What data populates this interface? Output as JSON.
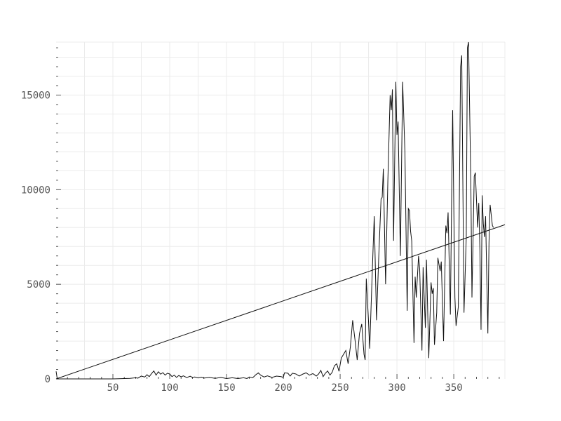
{
  "chart_data": {
    "type": "line",
    "title": "",
    "xlabel": "",
    "ylabel": "",
    "xlim": [
      0,
      395
    ],
    "ylim": [
      0,
      17800
    ],
    "x_ticks": [
      50,
      100,
      150,
      200,
      250,
      300,
      350
    ],
    "y_ticks": [
      0,
      5000,
      10000,
      15000
    ],
    "x_tick_labels": [
      "50",
      "100",
      "150",
      "200",
      "250",
      "300",
      "350"
    ],
    "y_tick_labels": [
      "0",
      "5000",
      "10000",
      "15000"
    ],
    "grid": true,
    "legend": "none",
    "colors": {
      "series": "#111111",
      "grid": "#ebebeb",
      "tick_text": "#555555",
      "background": "#ffffff"
    },
    "series": [
      {
        "points": [
          [
            0,
            400
          ],
          [
            1,
            0
          ],
          [
            10,
            0
          ],
          [
            20,
            0
          ],
          [
            30,
            0
          ],
          [
            40,
            0
          ],
          [
            50,
            0
          ],
          [
            55,
            10
          ],
          [
            60,
            20
          ],
          [
            65,
            30
          ],
          [
            70,
            60
          ],
          [
            72,
            40
          ],
          [
            75,
            150
          ],
          [
            78,
            100
          ],
          [
            80,
            220
          ],
          [
            82,
            120
          ],
          [
            84,
            280
          ],
          [
            86,
            420
          ],
          [
            88,
            200
          ],
          [
            90,
            380
          ],
          [
            92,
            250
          ],
          [
            94,
            330
          ],
          [
            96,
            200
          ],
          [
            98,
            300
          ],
          [
            100,
            260
          ],
          [
            102,
            120
          ],
          [
            104,
            200
          ],
          [
            106,
            80
          ],
          [
            108,
            180
          ],
          [
            110,
            110
          ],
          [
            112,
            160
          ],
          [
            115,
            70
          ],
          [
            118,
            140
          ],
          [
            120,
            80
          ],
          [
            122,
            100
          ],
          [
            125,
            50
          ],
          [
            128,
            90
          ],
          [
            130,
            40
          ],
          [
            135,
            80
          ],
          [
            140,
            30
          ],
          [
            145,
            80
          ],
          [
            150,
            20
          ],
          [
            155,
            60
          ],
          [
            160,
            20
          ],
          [
            165,
            60
          ],
          [
            168,
            20
          ],
          [
            170,
            100
          ],
          [
            173,
            60
          ],
          [
            176,
            230
          ],
          [
            178,
            320
          ],
          [
            180,
            200
          ],
          [
            183,
            100
          ],
          [
            186,
            160
          ],
          [
            190,
            80
          ],
          [
            194,
            150
          ],
          [
            198,
            120
          ],
          [
            200,
            80
          ],
          [
            201,
            320
          ],
          [
            204,
            300
          ],
          [
            206,
            150
          ],
          [
            208,
            300
          ],
          [
            211,
            260
          ],
          [
            214,
            150
          ],
          [
            217,
            250
          ],
          [
            220,
            320
          ],
          [
            223,
            200
          ],
          [
            226,
            280
          ],
          [
            229,
            150
          ],
          [
            231,
            260
          ],
          [
            233,
            450
          ],
          [
            235,
            120
          ],
          [
            237,
            300
          ],
          [
            239,
            420
          ],
          [
            241,
            200
          ],
          [
            243,
            350
          ],
          [
            245,
            700
          ],
          [
            247,
            800
          ],
          [
            249,
            400
          ],
          [
            251,
            1100
          ],
          [
            253,
            1300
          ],
          [
            255,
            1500
          ],
          [
            257,
            800
          ],
          [
            259,
            1700
          ],
          [
            261,
            3100
          ],
          [
            263,
            2100
          ],
          [
            265,
            1000
          ],
          [
            267,
            2400
          ],
          [
            269,
            2900
          ],
          [
            271,
            1300
          ],
          [
            272,
            1000
          ],
          [
            273,
            5300
          ],
          [
            275,
            3000
          ],
          [
            276,
            1600
          ],
          [
            278,
            5200
          ],
          [
            280,
            8600
          ],
          [
            282,
            3100
          ],
          [
            284,
            6500
          ],
          [
            286,
            9500
          ],
          [
            287,
            9600
          ],
          [
            288,
            11100
          ],
          [
            290,
            5000
          ],
          [
            292,
            10500
          ],
          [
            294,
            15000
          ],
          [
            295,
            14200
          ],
          [
            296,
            15300
          ],
          [
            297,
            7300
          ],
          [
            299,
            15700
          ],
          [
            300,
            12900
          ],
          [
            301,
            13600
          ],
          [
            303,
            6500
          ],
          [
            305,
            15700
          ],
          [
            307,
            12000
          ],
          [
            309,
            3600
          ],
          [
            310,
            9000
          ],
          [
            311,
            8900
          ],
          [
            312,
            7800
          ],
          [
            313,
            7300
          ],
          [
            315,
            1900
          ],
          [
            316,
            5400
          ],
          [
            317,
            4300
          ],
          [
            319,
            6500
          ],
          [
            320,
            5800
          ],
          [
            322,
            1500
          ],
          [
            323,
            5900
          ],
          [
            325,
            2700
          ],
          [
            326,
            6300
          ],
          [
            328,
            1100
          ],
          [
            330,
            5100
          ],
          [
            331,
            4500
          ],
          [
            332,
            4800
          ],
          [
            333,
            1800
          ],
          [
            335,
            3500
          ],
          [
            336,
            6400
          ],
          [
            338,
            5700
          ],
          [
            339,
            6200
          ],
          [
            341,
            2000
          ],
          [
            343,
            8100
          ],
          [
            344,
            7700
          ],
          [
            345,
            8800
          ],
          [
            347,
            3400
          ],
          [
            349,
            14200
          ],
          [
            351,
            4300
          ],
          [
            352,
            2800
          ],
          [
            354,
            3800
          ],
          [
            356,
            16500
          ],
          [
            357,
            17100
          ],
          [
            359,
            3500
          ],
          [
            361,
            7500
          ],
          [
            362,
            17500
          ],
          [
            363,
            17800
          ],
          [
            365,
            10500
          ],
          [
            366,
            4300
          ],
          [
            368,
            10700
          ],
          [
            369,
            10900
          ],
          [
            371,
            8000
          ],
          [
            372,
            9300
          ],
          [
            373,
            6800
          ],
          [
            374,
            2600
          ],
          [
            375,
            9700
          ],
          [
            376,
            8200
          ],
          [
            377,
            7500
          ],
          [
            378,
            8600
          ],
          [
            380,
            2400
          ],
          [
            381,
            7200
          ],
          [
            382,
            9200
          ],
          [
            384,
            8100
          ],
          [
            385,
            8000
          ]
        ]
      },
      {
        "points": [
          [
            0,
            0
          ],
          [
            395,
            8150
          ]
        ]
      }
    ]
  }
}
